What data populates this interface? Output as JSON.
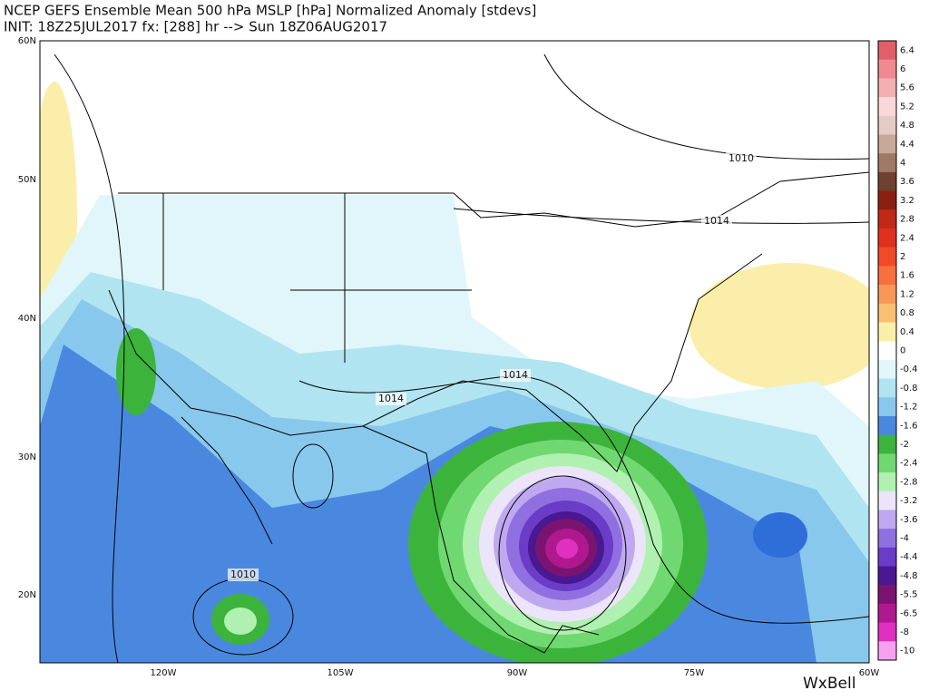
{
  "header": {
    "title": "NCEP GEFS Ensemble Mean 500 hPa MSLP [hPa] Normalized Anomaly [stdevs]",
    "subtitle": "INIT: 18Z25JUL2017 fx: [288] hr --> Sun 18Z06AUG2017"
  },
  "map": {
    "lat_labels": [
      "60N",
      "50N",
      "40N",
      "30N",
      "20N"
    ],
    "lon_labels": [
      "120W",
      "105W",
      "90W",
      "75W",
      "60W"
    ],
    "contour_labels": [
      "1010",
      "1014",
      "1014",
      "1014",
      "1010"
    ]
  },
  "colorbar": [
    {
      "label": "6.4",
      "color": "#e0606a"
    },
    {
      "label": "6",
      "color": "#f08a90"
    },
    {
      "label": "5.6",
      "color": "#f4b0b0"
    },
    {
      "label": "5.2",
      "color": "#f8d8d8"
    },
    {
      "label": "4.8",
      "color": "#e4ccc4"
    },
    {
      "label": "4.4",
      "color": "#c8a898"
    },
    {
      "label": "4",
      "color": "#a07868"
    },
    {
      "label": "3.6",
      "color": "#704030"
    },
    {
      "label": "3.2",
      "color": "#8a2010"
    },
    {
      "label": "2.8",
      "color": "#c02818"
    },
    {
      "label": "2.4",
      "color": "#e03020"
    },
    {
      "label": "2",
      "color": "#f04a28"
    },
    {
      "label": "1.6",
      "color": "#f87040"
    },
    {
      "label": "1.2",
      "color": "#f89858"
    },
    {
      "label": "0.8",
      "color": "#f8c070"
    },
    {
      "label": "0.4",
      "color": "#fbeeaa"
    },
    {
      "label": "0",
      "color": "#ffffff"
    },
    {
      "label": "-0.4",
      "color": "#e0f6fa"
    },
    {
      "label": "-0.8",
      "color": "#b0e4f0"
    },
    {
      "label": "-1.2",
      "color": "#88c8ec"
    },
    {
      "label": "-1.6",
      "color": "#4a88e0"
    },
    {
      "label": "-2",
      "color": "#3cb43c"
    },
    {
      "label": "-2.4",
      "color": "#70d870"
    },
    {
      "label": "-2.8",
      "color": "#b0f0b0"
    },
    {
      "label": "-3.2",
      "color": "#ece4f8"
    },
    {
      "label": "-3.6",
      "color": "#c0a8f0"
    },
    {
      "label": "-4",
      "color": "#9070e0"
    },
    {
      "label": "-4.4",
      "color": "#6a3cc8"
    },
    {
      "label": "-4.8",
      "color": "#4a1890"
    },
    {
      "label": "-5.5",
      "color": "#7a1470"
    },
    {
      "label": "-6.5",
      "color": "#b01890"
    },
    {
      "label": "-8",
      "color": "#e030c0"
    },
    {
      "label": "-10",
      "color": "#f8a0f0"
    }
  ],
  "logo": "WxBell"
}
